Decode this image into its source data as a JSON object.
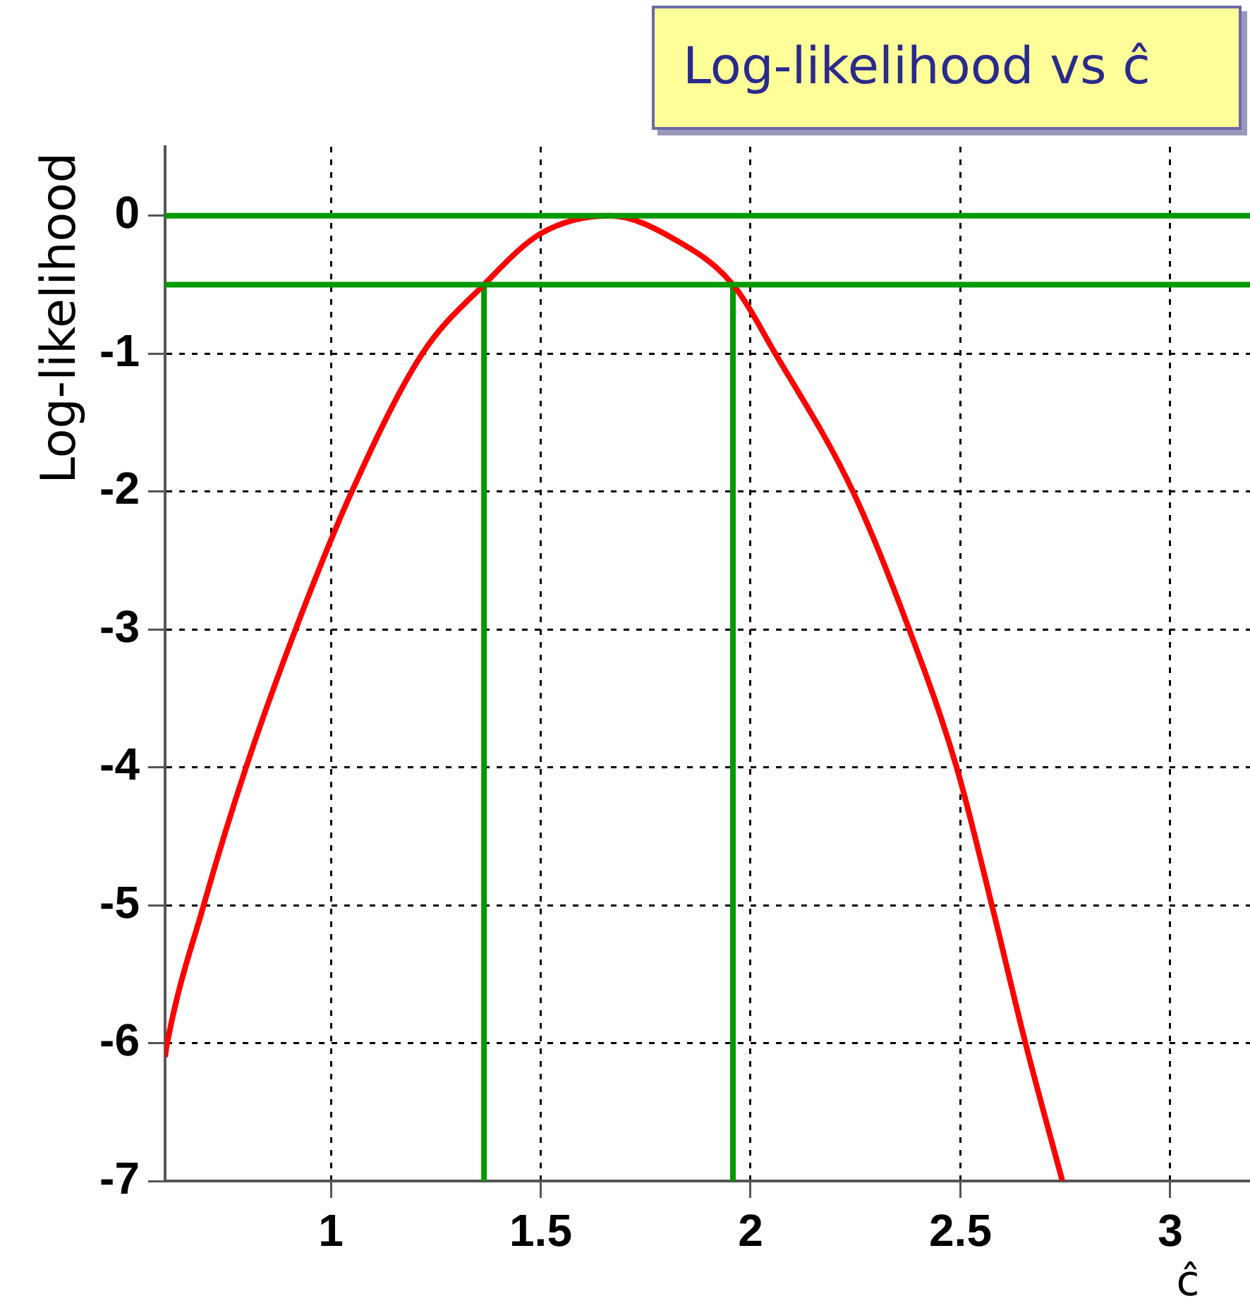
{
  "chart_data": {
    "type": "line",
    "title": "Log-likelihood vs ĉ",
    "xlabel": "ĉ",
    "ylabel": "Log-likelihood",
    "xlim": [
      0.605,
      3.19
    ],
    "xticks": [
      1,
      1.5,
      2,
      2.5,
      3
    ],
    "ylim": [
      -7,
      0.5
    ],
    "yticks": [
      0,
      -1,
      -2,
      -3,
      -4,
      -5,
      -6,
      -7
    ],
    "grid": true,
    "marker": "none",
    "series": [
      {
        "color": "#ff0000",
        "x": [
          0.605,
          0.61,
          0.697,
          0.798,
          0.916,
          1.05,
          1.218,
          1.365,
          1.5,
          1.664,
          1.824,
          1.958,
          2.059,
          2.244,
          2.378,
          2.491,
          2.575,
          2.655,
          2.743
        ],
        "values": [
          -6.1,
          -6,
          -5,
          -4,
          -3,
          -2,
          -1,
          -0.5,
          -0.13,
          0,
          -0.18,
          -0.5,
          -1,
          -2,
          -3,
          -4,
          -5,
          -6,
          -7
        ]
      },
      {
        "color": "#009900",
        "x": [
          1.365,
          1.365
        ],
        "values": [
          -7,
          -0.5
        ]
      },
      {
        "color": "#009900",
        "x": [
          1.958,
          1.958
        ],
        "values": [
          -7,
          -0.5
        ]
      }
    ],
    "ref_lines": [
      {
        "axis": "y",
        "value": 0,
        "color": "#009900"
      },
      {
        "axis": "y",
        "value": -0.5,
        "color": "#009900"
      }
    ]
  }
}
